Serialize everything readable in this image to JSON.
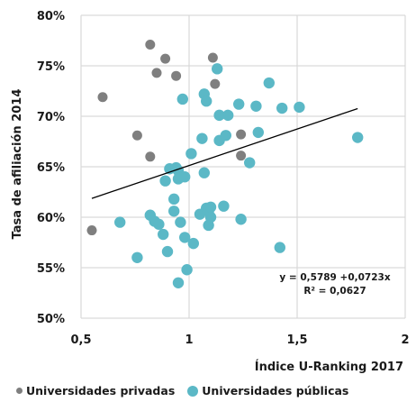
{
  "chart_data": {
    "type": "scatter",
    "xlabel": "Índice U-Ranking 2017",
    "ylabel": "Tasa de afiliación 2014",
    "xlim": [
      0.5,
      2
    ],
    "ylim": [
      0.5,
      0.8
    ],
    "xticks": [
      0.5,
      1,
      1.5,
      2
    ],
    "xtick_labels": [
      "0,5",
      "1",
      "1,5",
      "2"
    ],
    "yticks": [
      0.5,
      0.55,
      0.6,
      0.65,
      0.7,
      0.75,
      0.8
    ],
    "ytick_labels": [
      "50%",
      "55%",
      "60%",
      "65%",
      "70%",
      "75%",
      "80%"
    ],
    "grid": true,
    "legend_position": "bottom",
    "series": [
      {
        "name": "Universidades privadas",
        "color": "#7f7f7f",
        "points": [
          [
            0.55,
            0.587
          ],
          [
            0.6,
            0.719
          ],
          [
            0.76,
            0.681
          ],
          [
            0.82,
            0.771
          ],
          [
            0.82,
            0.66
          ],
          [
            0.85,
            0.743
          ],
          [
            0.89,
            0.757
          ],
          [
            0.94,
            0.74
          ],
          [
            1.11,
            0.758
          ],
          [
            1.12,
            0.732
          ],
          [
            1.24,
            0.682
          ],
          [
            1.24,
            0.661
          ]
        ]
      },
      {
        "name": "Universidades públicas",
        "color": "#5bb8c6",
        "points": [
          [
            0.68,
            0.595
          ],
          [
            0.76,
            0.56
          ],
          [
            0.82,
            0.602
          ],
          [
            0.84,
            0.596
          ],
          [
            0.86,
            0.593
          ],
          [
            0.88,
            0.583
          ],
          [
            0.89,
            0.636
          ],
          [
            0.9,
            0.566
          ],
          [
            0.91,
            0.648
          ],
          [
            0.93,
            0.618
          ],
          [
            0.93,
            0.606
          ],
          [
            0.94,
            0.649
          ],
          [
            0.95,
            0.646
          ],
          [
            0.95,
            0.638
          ],
          [
            0.96,
            0.595
          ],
          [
            0.97,
            0.717
          ],
          [
            0.98,
            0.58
          ],
          [
            0.98,
            0.64
          ],
          [
            0.99,
            0.548
          ],
          [
            1.01,
            0.663
          ],
          [
            1.02,
            0.574
          ],
          [
            1.05,
            0.603
          ],
          [
            1.06,
            0.678
          ],
          [
            1.07,
            0.722
          ],
          [
            1.07,
            0.644
          ],
          [
            1.08,
            0.715
          ],
          [
            1.08,
            0.609
          ],
          [
            1.09,
            0.606
          ],
          [
            1.09,
            0.592
          ],
          [
            1.1,
            0.61
          ],
          [
            1.1,
            0.6
          ],
          [
            1.13,
            0.747
          ],
          [
            1.14,
            0.701
          ],
          [
            1.14,
            0.676
          ],
          [
            1.16,
            0.611
          ],
          [
            1.17,
            0.681
          ],
          [
            1.18,
            0.701
          ],
          [
            1.23,
            0.712
          ],
          [
            1.24,
            0.598
          ],
          [
            1.28,
            0.654
          ],
          [
            1.31,
            0.71
          ],
          [
            1.32,
            0.684
          ],
          [
            1.37,
            0.733
          ],
          [
            1.42,
            0.57
          ],
          [
            1.43,
            0.708
          ],
          [
            1.51,
            0.709
          ],
          [
            1.78,
            0.679
          ],
          [
            0.95,
            0.535
          ]
        ]
      }
    ],
    "trendline": {
      "slope": 0.0723,
      "intercept": 0.5789,
      "x_range": [
        0.55,
        1.78
      ],
      "color": "#000000"
    },
    "annotations": [
      "y = 0,5789 +0,0723x",
      "R² = 0,0627"
    ]
  }
}
